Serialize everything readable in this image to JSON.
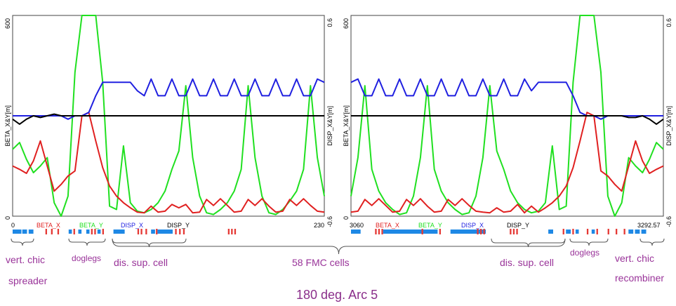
{
  "title": "180 deg. Arc 5",
  "chart_data": [
    {
      "type": "line",
      "panel": "left",
      "s_start": "0",
      "s_end": "230",
      "left_axis": {
        "label": "BETA_X&Y[m]",
        "ticks": [
          "600",
          "0"
        ],
        "range": [
          0,
          600
        ]
      },
      "right_axis": {
        "label": "DISP_X&Y[m]",
        "ticks": [
          "0.6",
          "-0.6"
        ],
        "range": [
          -0.6,
          0.6
        ]
      },
      "legend": [
        "BETA_X",
        "BETA_Y",
        "DISP_X",
        "DISP_Y"
      ],
      "series": [
        {
          "name": "BETA_X",
          "color": "#e02020",
          "axis": "left",
          "values": [
            150,
            140,
            128,
            165,
            225,
            150,
            75,
            95,
            120,
            135,
            300,
            310,
            225,
            145,
            90,
            60,
            40,
            25,
            12,
            10,
            30,
            12,
            15,
            35,
            25,
            35,
            10,
            12,
            50,
            32,
            52,
            32,
            12,
            15,
            50,
            32,
            52,
            30,
            12,
            15,
            50,
            32,
            52,
            32,
            15,
            12
          ]
        },
        {
          "name": "BETA_Y",
          "color": "#20e020",
          "axis": "left",
          "values": [
            200,
            220,
            170,
            130,
            150,
            175,
            40,
            0,
            60,
            430,
            600,
            600,
            600,
            400,
            30,
            20,
            210,
            40,
            15,
            10,
            20,
            40,
            75,
            140,
            195,
            390,
            175,
            60,
            10,
            5,
            20,
            40,
            75,
            140,
            390,
            175,
            60,
            10,
            5,
            20,
            45,
            75,
            140,
            390,
            175,
            60
          ]
        },
        {
          "name": "DISP_X",
          "color": "#2020e0",
          "axis": "right",
          "values": [
            0.0,
            0.0,
            0.0,
            0.0,
            0.0,
            0.0,
            0.0,
            0.0,
            -0.02,
            0.0,
            0.0,
            0.02,
            0.12,
            0.2,
            0.2,
            0.2,
            0.2,
            0.2,
            0.15,
            0.12,
            0.22,
            0.12,
            0.12,
            0.22,
            0.12,
            0.12,
            0.22,
            0.12,
            0.12,
            0.22,
            0.12,
            0.12,
            0.22,
            0.12,
            0.12,
            0.22,
            0.12,
            0.12,
            0.22,
            0.12,
            0.12,
            0.22,
            0.12,
            0.12,
            0.22,
            0.2
          ]
        },
        {
          "name": "DISP_Y",
          "color": "#000000",
          "axis": "right",
          "values": [
            -0.02,
            -0.05,
            -0.02,
            0.0,
            -0.01,
            0.0,
            0.01,
            0.0,
            0.0,
            0.0,
            0.0,
            0.0,
            0.0,
            0.0,
            0.0,
            0.0,
            0.0,
            0.0,
            0.0,
            0.0,
            0.0,
            0.0,
            0.0,
            0.0,
            0.0,
            0.0,
            0.0,
            0.0,
            0.0,
            0.0,
            0.0,
            0.0,
            0.0,
            0.0,
            0.0,
            0.0,
            0.0,
            0.0,
            0.0,
            0.0,
            0.0,
            0.0,
            0.0,
            0.0,
            0.0,
            0.0
          ]
        }
      ]
    },
    {
      "type": "line",
      "panel": "right",
      "s_start": "3060",
      "s_end": "3292.57",
      "left_axis": {
        "label": "BETA_X&Y[m]",
        "ticks": [
          "600",
          "0"
        ],
        "range": [
          0,
          600
        ]
      },
      "right_axis": {
        "label": "DISP_X&Y[m]",
        "ticks": [
          "0.6",
          "-0.6"
        ],
        "range": [
          -0.6,
          0.6
        ]
      },
      "legend": [
        "BETA_X",
        "BETA_Y",
        "DISP_X",
        "DISP_Y"
      ],
      "series": [
        {
          "name": "BETA_X",
          "color": "#e02020",
          "axis": "left",
          "values": [
            12,
            15,
            50,
            32,
            52,
            32,
            12,
            15,
            50,
            32,
            52,
            30,
            12,
            15,
            50,
            32,
            52,
            32,
            15,
            12,
            10,
            25,
            12,
            15,
            35,
            10,
            30,
            12,
            25,
            40,
            60,
            90,
            145,
            225,
            310,
            300,
            135,
            120,
            95,
            75,
            150,
            225,
            165,
            128,
            140,
            150
          ]
        },
        {
          "name": "BETA_Y",
          "color": "#20e020",
          "axis": "left",
          "values": [
            60,
            175,
            390,
            140,
            75,
            40,
            20,
            5,
            10,
            60,
            175,
            390,
            140,
            75,
            40,
            20,
            5,
            10,
            60,
            175,
            390,
            195,
            140,
            75,
            40,
            20,
            10,
            15,
            40,
            210,
            20,
            30,
            400,
            600,
            600,
            600,
            430,
            60,
            0,
            40,
            175,
            150,
            130,
            170,
            220,
            200
          ]
        },
        {
          "name": "DISP_X",
          "color": "#2020e0",
          "axis": "right",
          "values": [
            0.2,
            0.22,
            0.12,
            0.12,
            0.22,
            0.12,
            0.12,
            0.22,
            0.12,
            0.12,
            0.22,
            0.12,
            0.12,
            0.22,
            0.12,
            0.12,
            0.22,
            0.12,
            0.12,
            0.22,
            0.12,
            0.12,
            0.22,
            0.12,
            0.12,
            0.22,
            0.15,
            0.2,
            0.2,
            0.2,
            0.2,
            0.2,
            0.12,
            0.02,
            0.0,
            0.0,
            -0.02,
            0.0,
            0.0,
            0.0,
            0.0,
            0.0,
            0.0,
            0.0,
            0.0,
            0.0
          ]
        },
        {
          "name": "DISP_Y",
          "color": "#000000",
          "axis": "right",
          "values": [
            0.0,
            0.0,
            0.0,
            0.0,
            0.0,
            0.0,
            0.0,
            0.0,
            0.0,
            0.0,
            0.0,
            0.0,
            0.0,
            0.0,
            0.0,
            0.0,
            0.0,
            0.0,
            0.0,
            0.0,
            0.0,
            0.0,
            0.0,
            0.0,
            0.0,
            0.0,
            0.0,
            0.0,
            0.0,
            0.0,
            0.0,
            0.0,
            0.0,
            0.0,
            0.0,
            0.0,
            0.0,
            0.0,
            0.0,
            0.0,
            -0.01,
            -0.01,
            0.0,
            -0.02,
            -0.05,
            -0.02
          ]
        }
      ]
    }
  ],
  "lattice": {
    "left": [
      [
        "b",
        0,
        0.055
      ],
      [
        "b",
        0.06,
        0.09
      ],
      [
        "b",
        0.1,
        0.13
      ],
      [
        "r",
        0.205,
        0.215
      ],
      [
        "r",
        0.24,
        0.25
      ],
      [
        "r",
        0.28,
        0.29
      ],
      [
        "b",
        0.35,
        0.37
      ],
      [
        "r",
        0.38,
        0.39
      ],
      [
        "b",
        0.41,
        0.43
      ],
      [
        "b",
        0.46,
        0.48
      ],
      [
        "r",
        0.49,
        0.5
      ],
      [
        "r",
        0.51,
        0.52
      ],
      [
        "b",
        0.53,
        0.55
      ],
      [
        "r",
        0.56,
        0.57
      ],
      [
        "b",
        0.63,
        0.7
      ],
      [
        "r",
        0.78,
        0.79
      ],
      [
        "r",
        0.8,
        0.81
      ],
      [
        "r",
        0.83,
        0.84
      ],
      [
        "b",
        0.865,
        0.89
      ],
      [
        "r",
        0.895,
        0.905
      ],
      [
        "b",
        0.905,
        1.0
      ],
      [
        "r",
        1.015,
        1.025
      ],
      [
        "r",
        1.04,
        1.05
      ],
      [
        "r",
        1.065,
        1.075
      ],
      [
        "r",
        1.345,
        1.355
      ],
      [
        "r",
        1.365,
        1.375
      ],
      [
        "r",
        1.385,
        1.395
      ]
    ],
    "right": [
      [
        "b",
        0,
        0.06
      ],
      [
        "r",
        0.15,
        0.16
      ],
      [
        "r",
        0.17,
        0.18
      ],
      [
        "r",
        0.19,
        0.2
      ],
      [
        "b",
        0.2,
        0.54
      ],
      [
        "r",
        0.44,
        0.45
      ],
      [
        "r",
        0.55,
        0.56
      ],
      [
        "b",
        0.62,
        0.84
      ],
      [
        "r",
        0.785,
        0.795
      ],
      [
        "r",
        0.805,
        0.815
      ],
      [
        "r",
        0.825,
        0.835
      ],
      [
        "r",
        0.99,
        1.0
      ],
      [
        "r",
        1.01,
        1.02
      ],
      [
        "r",
        1.03,
        1.04
      ],
      [
        "b",
        1.23,
        1.26
      ],
      [
        "r",
        1.32,
        1.33
      ],
      [
        "b",
        1.34,
        1.37
      ],
      [
        "r",
        1.38,
        1.39
      ],
      [
        "b",
        1.4,
        1.42
      ],
      [
        "r",
        1.47,
        1.48
      ],
      [
        "b",
        1.5,
        1.52
      ],
      [
        "r",
        1.53,
        1.54
      ],
      [
        "r",
        1.6,
        1.61
      ],
      [
        "r",
        1.65,
        1.66
      ],
      [
        "r",
        1.7,
        1.71
      ],
      [
        "b",
        1.73,
        1.76
      ],
      [
        "b",
        1.77,
        1.8
      ],
      [
        "b",
        1.81,
        1.84
      ]
    ]
  },
  "annotations": {
    "vert_chic": "vert.  chic",
    "spreader": "spreader",
    "doglegs_left": "doglegs",
    "dis_sup_cell_left": "dis. sup. cell",
    "fmc_cells": "58 FMC cells",
    "dis_sup_cell_right": "dis. sup. cell",
    "doglegs_right": "doglegs",
    "vert_chic_right": "vert.  chic",
    "recombiner": "recombiner"
  }
}
